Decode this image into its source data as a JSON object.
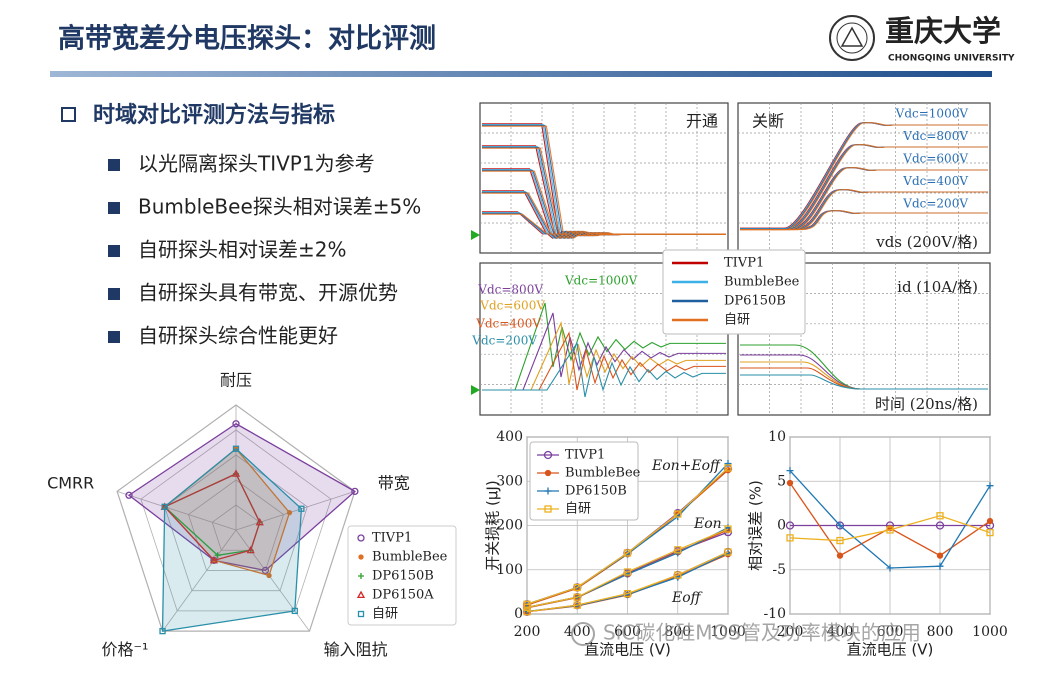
{
  "header": {
    "title": "高带宽差分电压探头：对比评测",
    "logo_cn": "重庆大学",
    "logo_en": "CHONGQING UNIVERSITY"
  },
  "section": {
    "heading": "时域对比评测方法与指标",
    "items": [
      "以光隔离探头TIVP1为参考",
      "BumbleBee探头相对误差±5%",
      "自研探头相对误差±2%",
      "自研探头具有带宽、开源优势",
      "自研探头综合性能更好"
    ]
  },
  "watermark": "SiC碳化硅MOS管及功率模块的应用",
  "chart_data": [
    {
      "type": "radar",
      "axes": [
        "耐压",
        "带宽",
        "输入阻抗",
        "价格⁻¹",
        "CMRR"
      ],
      "rlim": [
        0,
        1
      ],
      "series": [
        {
          "name": "TIVP1",
          "color": "#7b3f9e",
          "marker": "circle",
          "filled": true,
          "values": [
            0.85,
            1.0,
            0.4,
            0.3,
            0.9
          ]
        },
        {
          "name": "BumbleBee",
          "color": "#e07020",
          "marker": "dot",
          "filled": true,
          "values": [
            0.65,
            0.45,
            0.45,
            0.3,
            0.6
          ]
        },
        {
          "name": "DP6150B",
          "color": "#2ca02c",
          "marker": "plus",
          "filled": false,
          "values": [
            0.45,
            0.2,
            0.2,
            0.25,
            0.6
          ]
        },
        {
          "name": "DP6150A",
          "color": "#d62728",
          "marker": "triangle",
          "filled": false,
          "values": [
            0.45,
            0.2,
            0.2,
            0.3,
            0.6
          ]
        },
        {
          "name": "自研",
          "color": "#2a8fa8",
          "marker": "square",
          "filled": true,
          "values": [
            0.65,
            0.55,
            0.8,
            1.0,
            0.6
          ]
        }
      ]
    },
    {
      "type": "waveform",
      "panel_labels": [
        "开通",
        "关断"
      ],
      "vds_label": "vds (200V/格)",
      "id_label": "id (10A/格)",
      "time_label": "时间 (20ns/格)",
      "vdc_labels": [
        "Vdc=1000V",
        "Vdc=800V",
        "Vdc=600V",
        "Vdc=400V",
        "Vdc=200V"
      ],
      "id_vdc_labels": [
        {
          "text": "Vdc=1000V",
          "color": "#2ca02c"
        },
        {
          "text": "Vdc=800V",
          "color": "#7b3f9e"
        },
        {
          "text": "Vdc=600V",
          "color": "#e0a020"
        },
        {
          "text": "Vdc=400V",
          "color": "#d9541a"
        },
        {
          "text": "Vdc=200V",
          "color": "#2a8fa8"
        }
      ],
      "series": [
        {
          "name": "TIVP1",
          "color": "#c00000"
        },
        {
          "name": "BumbleBee",
          "color": "#3db0e8"
        },
        {
          "name": "DP6150B",
          "color": "#1f5f9e"
        },
        {
          "name": "自研",
          "color": "#e07020"
        }
      ]
    },
    {
      "type": "line",
      "xlabel": "直流电压 (V)",
      "ylabel": "开关损耗 (μJ)",
      "annotations": [
        "Eon+Eoff",
        "Eon",
        "Eoff"
      ],
      "x": [
        200,
        400,
        600,
        800,
        1000
      ],
      "xlim": [
        200,
        1000
      ],
      "xticks": [
        200,
        400,
        600,
        800,
        1000
      ],
      "ylim": [
        0,
        400
      ],
      "yticks": [
        0,
        100,
        200,
        300,
        400
      ],
      "grid": true,
      "series": [
        {
          "name": "TIVP1",
          "color": "#7b3f9e",
          "marker": "circle",
          "eon_eoff": [
            22,
            60,
            138,
            228,
            328
          ],
          "eon": [
            15,
            38,
            92,
            142,
            185
          ],
          "eoff": [
            5,
            20,
            45,
            88,
            140
          ]
        },
        {
          "name": "BumbleBee",
          "color": "#d9541a",
          "marker": "dot",
          "eon_eoff": [
            20,
            58,
            135,
            225,
            325
          ],
          "eon": [
            14,
            37,
            90,
            140,
            190
          ],
          "eoff": [
            5,
            18,
            43,
            85,
            135
          ]
        },
        {
          "name": "DP6150B",
          "color": "#1f77b4",
          "marker": "plus",
          "eon_eoff": [
            22,
            60,
            136,
            220,
            340
          ],
          "eon": [
            15,
            38,
            90,
            138,
            195
          ],
          "eoff": [
            6,
            19,
            44,
            83,
            138
          ]
        },
        {
          "name": "自研",
          "color": "#edb120",
          "marker": "square",
          "eon_eoff": [
            22,
            60,
            138,
            226,
            330
          ],
          "eon": [
            15,
            38,
            95,
            145,
            192
          ],
          "eoff": [
            5,
            20,
            46,
            88,
            140
          ]
        }
      ]
    },
    {
      "type": "line",
      "xlabel": "直流电压 (V)",
      "ylabel": "相对误差 (%)",
      "x": [
        200,
        400,
        600,
        800,
        1000
      ],
      "xlim": [
        200,
        1000
      ],
      "xticks": [
        200,
        400,
        600,
        800,
        1000
      ],
      "ylim": [
        -10,
        10
      ],
      "yticks": [
        -10,
        -5,
        0,
        5,
        10
      ],
      "grid": true,
      "series": [
        {
          "name": "TIVP1",
          "color": "#7b3f9e",
          "marker": "circle",
          "values": [
            0,
            0,
            0,
            0,
            0
          ]
        },
        {
          "name": "BumbleBee",
          "color": "#d9541a",
          "marker": "dot",
          "values": [
            4.8,
            -3.4,
            -0.3,
            -3.4,
            0.5
          ]
        },
        {
          "name": "DP6150B",
          "color": "#1f77b4",
          "marker": "plus",
          "values": [
            6.2,
            0,
            -4.8,
            -4.6,
            4.5
          ]
        },
        {
          "name": "自研",
          "color": "#edb120",
          "marker": "square",
          "values": [
            -1.4,
            -1.7,
            -0.5,
            1.1,
            -0.8
          ]
        }
      ]
    }
  ]
}
